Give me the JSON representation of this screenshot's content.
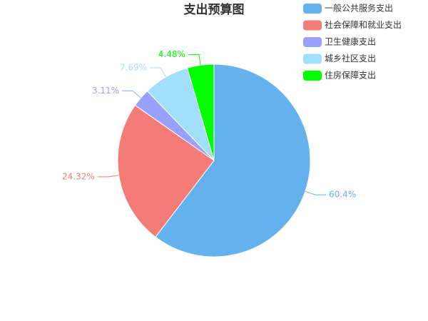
{
  "chart_data": {
    "type": "pie",
    "title": "支出预算图",
    "categories": [
      "一般公共服务支出",
      "社会保障和就业支出",
      "卫生健康支出",
      "城乡社区支出",
      "住房保障支出"
    ],
    "values": [
      60.4,
      24.32,
      3.11,
      7.69,
      4.48
    ],
    "value_labels": [
      "60.4%",
      "24.32%",
      "3.11%",
      "7.69%",
      "4.48%"
    ],
    "colors": [
      "#63b2ee",
      "#f47c77",
      "#98a2fc",
      "#a2dffc",
      "#00ff00"
    ],
    "legend": "top-right"
  }
}
